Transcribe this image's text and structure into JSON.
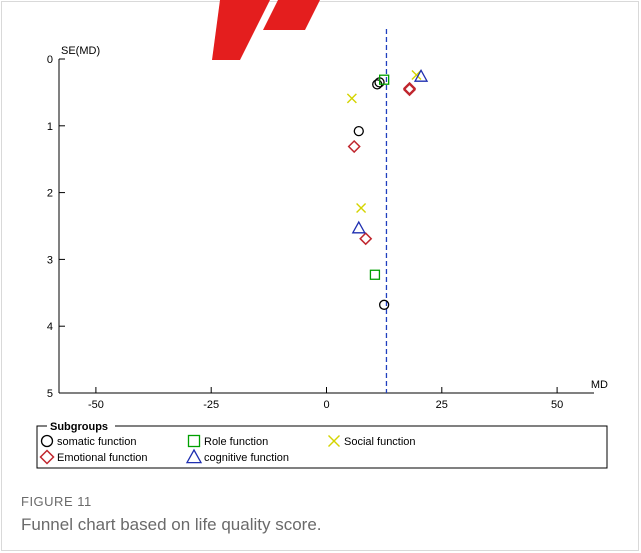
{
  "figure": {
    "label": "FIGURE 11",
    "caption": "Funnel chart based on life quality score."
  },
  "chart_data": {
    "type": "scatter",
    "title": "",
    "xlabel": "MD",
    "ylabel": "SE(MD)",
    "xlim": [
      -58,
      58
    ],
    "ylim": [
      0,
      5
    ],
    "y_reversed": true,
    "x_ticks": [
      -50,
      -25,
      0,
      25,
      50
    ],
    "y_ticks": [
      0,
      1,
      2,
      3,
      4,
      5
    ],
    "x_tick_labels": [
      "-50",
      "-25",
      "0",
      "25",
      "50"
    ],
    "y_tick_labels": [
      "0",
      "1",
      "2",
      "3",
      "4",
      "5"
    ],
    "reference_line": {
      "x": 13,
      "style": "dashed",
      "color": "#1f3fbf"
    },
    "grid": false,
    "legend": {
      "title": "Subgroups",
      "placement": "bottom"
    },
    "series": [
      {
        "name": "somatic function",
        "marker": "circle",
        "color": "#000000",
        "points": [
          {
            "x": 11.5,
            "y": 0.35
          },
          {
            "x": 11.0,
            "y": 0.38
          },
          {
            "x": 7.0,
            "y": 1.08
          },
          {
            "x": 12.5,
            "y": 3.68
          }
        ]
      },
      {
        "name": "Role function",
        "marker": "square",
        "color": "#00a000",
        "points": [
          {
            "x": 12.5,
            "y": 0.31
          },
          {
            "x": 10.5,
            "y": 3.23
          }
        ]
      },
      {
        "name": "Social function",
        "marker": "x",
        "color": "#d4d400",
        "points": [
          {
            "x": 19.5,
            "y": 0.24
          },
          {
            "x": 5.5,
            "y": 0.59
          },
          {
            "x": 7.5,
            "y": 2.23
          }
        ]
      },
      {
        "name": "Emotional function",
        "marker": "diamond",
        "color": "#c0262e",
        "points": [
          {
            "x": 18.0,
            "y": 0.44
          },
          {
            "x": 18.0,
            "y": 0.46
          },
          {
            "x": 6.0,
            "y": 1.31
          },
          {
            "x": 8.5,
            "y": 2.69
          }
        ]
      },
      {
        "name": "cognitive function",
        "marker": "triangle",
        "color": "#1f2fb0",
        "points": [
          {
            "x": 20.5,
            "y": 0.26
          },
          {
            "x": 7.0,
            "y": 2.53
          }
        ]
      }
    ]
  }
}
